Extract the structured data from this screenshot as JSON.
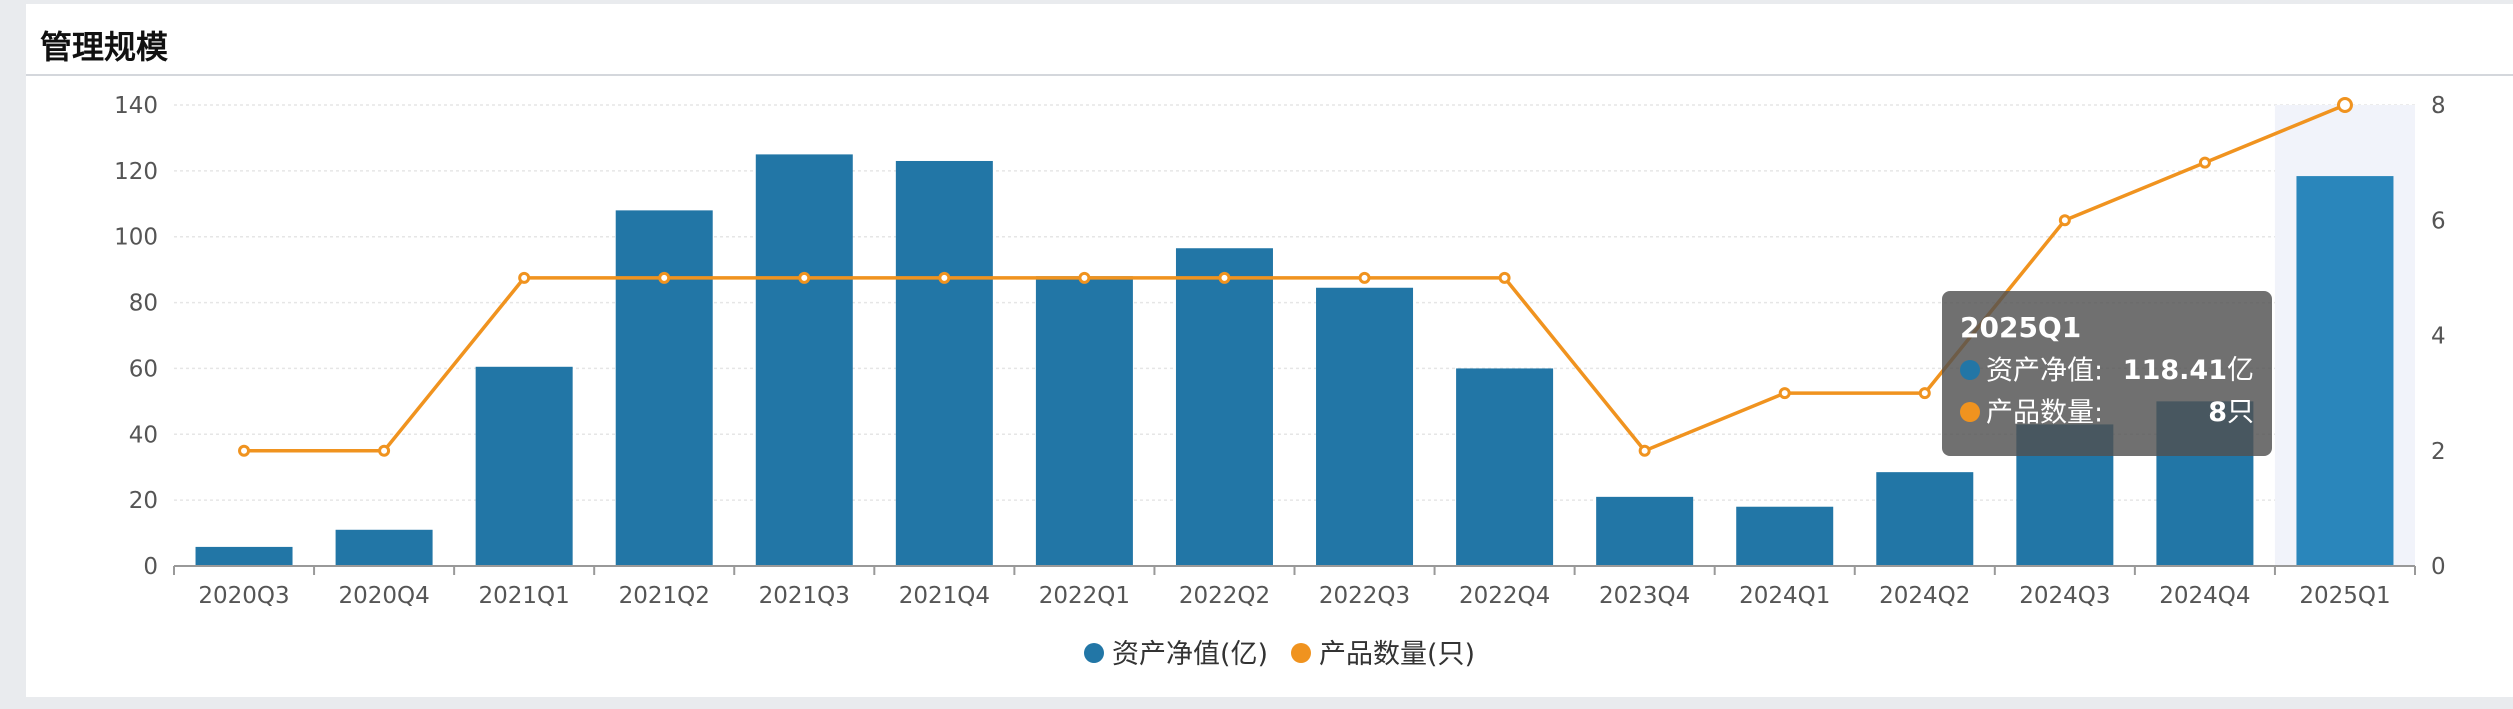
{
  "panel": {
    "title": "管理规模"
  },
  "colors": {
    "bar": "#2276a6",
    "bar_highlight": "#2a86bb",
    "line": "#f0931f",
    "axis": "#999999",
    "grid": "#e6e6e6",
    "highlight_band": "#f1f3fa"
  },
  "chart_data": {
    "type": "bar",
    "categories": [
      "2020Q3",
      "2020Q4",
      "2021Q1",
      "2021Q2",
      "2021Q3",
      "2021Q4",
      "2022Q1",
      "2022Q2",
      "2022Q3",
      "2022Q4",
      "2023Q4",
      "2024Q1",
      "2024Q2",
      "2024Q3",
      "2024Q4",
      "2025Q1"
    ],
    "series": [
      {
        "name": "资产净值(亿)",
        "type": "bar",
        "axis": "left",
        "values": [
          5.8,
          11,
          60.5,
          108,
          125,
          123,
          88,
          96.5,
          84.5,
          60,
          21,
          18,
          28.5,
          43,
          50,
          118.41
        ]
      },
      {
        "name": "产品数量(只)",
        "type": "line",
        "axis": "right",
        "values": [
          2,
          2,
          5,
          5,
          5,
          5,
          5,
          5,
          5,
          5,
          2,
          3,
          3,
          6,
          7,
          8
        ]
      }
    ],
    "y_left": {
      "min": 0,
      "max": 140,
      "ticks": [
        0,
        20,
        40,
        60,
        80,
        100,
        120,
        140
      ]
    },
    "y_right": {
      "min": 0,
      "max": 8,
      "ticks": [
        0,
        2,
        4,
        6,
        8
      ]
    },
    "highlight_category": "2025Q1",
    "legend_position": "bottom-center",
    "grid": true
  },
  "legend": [
    {
      "label": "资产净值(亿)"
    },
    {
      "label": "产品数量(只)"
    }
  ],
  "tooltip": {
    "title": "2025Q1",
    "rows": [
      {
        "label": "资产净值:",
        "value": "118.41",
        "unit": "亿"
      },
      {
        "label": "产品数量:",
        "value": "8",
        "unit": "只"
      }
    ]
  }
}
